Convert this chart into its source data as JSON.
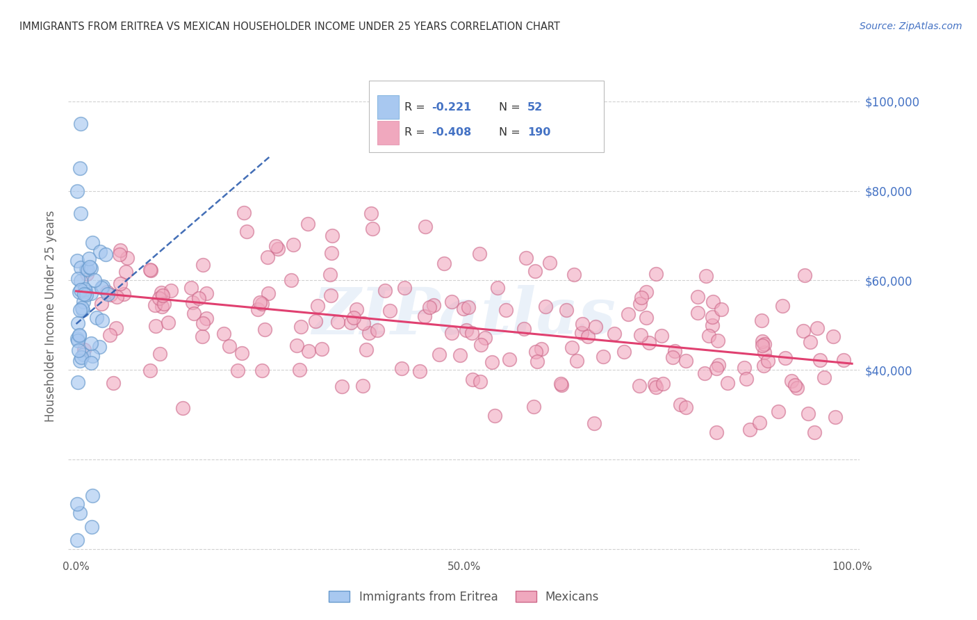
{
  "title": "IMMIGRANTS FROM ERITREA VS MEXICAN HOUSEHOLDER INCOME UNDER 25 YEARS CORRELATION CHART",
  "source": "Source: ZipAtlas.com",
  "ylabel": "Householder Income Under 25 years",
  "legend_eritrea_label": "Immigrants from Eritrea",
  "legend_mexicans_label": "Mexicans",
  "R_eritrea": -0.221,
  "N_eritrea": 52,
  "R_mexicans": -0.408,
  "N_mexicans": 190,
  "eritrea_color": "#a8c8f0",
  "eritrea_edge_color": "#6699cc",
  "mexican_color": "#f0a8be",
  "mexican_edge_color": "#cc6688",
  "eritrea_line_color": "#2255aa",
  "mexican_line_color": "#e04070",
  "watermark": "ZIPatlas",
  "title_color": "#333333",
  "right_axis_color": "#4472c4",
  "grid_color": "#cccccc",
  "legend_text_color": "#333333",
  "legend_value_color": "#4472c4"
}
